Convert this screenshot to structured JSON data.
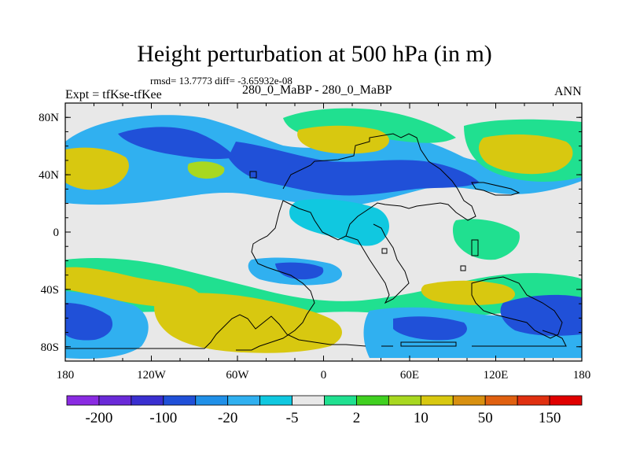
{
  "title": "Height perturbation at 500 hPa (in m)",
  "stats": "rmsd= 13.7773 diff= -3.65932e-08",
  "left_label": "Expt = tfKse-tfKee",
  "center_label": "280_0_MaBP - 280_0_MaBP",
  "right_label": "ANN",
  "y_ticks": [
    "80N",
    "40N",
    "0",
    "40S",
    "80S"
  ],
  "x_ticks": [
    "180",
    "120W",
    "60W",
    "0",
    "60E",
    "120E",
    "180"
  ],
  "colorbar_labels": [
    "-200",
    "-100",
    "-20",
    "-5",
    "2",
    "10",
    "50",
    "150"
  ],
  "colors": [
    "#8a2be2",
    "#6a2ad8",
    "#3a2fd0",
    "#2050d8",
    "#2090e8",
    "#30b0f0",
    "#10c8e0",
    "#e8e8e8",
    "#20e090",
    "#40d020",
    "#a8d820",
    "#d8c810",
    "#d89010",
    "#e06010",
    "#e03010",
    "#e00000"
  ],
  "chart_data": {
    "type": "heatmap",
    "title": "Height perturbation at 500 hPa (in m)",
    "xlim": [
      -180,
      180
    ],
    "ylim": [
      -90,
      90
    ],
    "x_tick_labels": [
      "180",
      "120W",
      "60W",
      "0",
      "60E",
      "120E",
      "180"
    ],
    "y_tick_labels": [
      "80N",
      "40N",
      "0",
      "40S",
      "80S"
    ],
    "colorbar_labels": [
      "-200",
      "-100",
      "-20",
      "-5",
      "2",
      "10",
      "50",
      "150"
    ]
  }
}
